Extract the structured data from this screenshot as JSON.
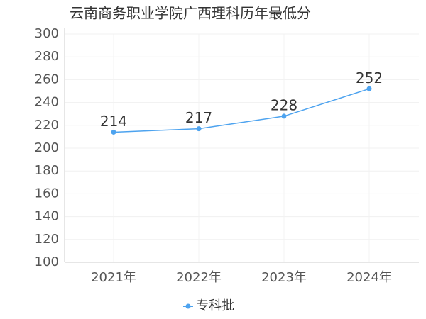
{
  "chart_data": {
    "type": "line",
    "title": "云南商务职业学院广西理科历年最低分",
    "categories": [
      "2021年",
      "2022年",
      "2023年",
      "2024年"
    ],
    "series": [
      {
        "name": "专科批",
        "color": "#4da3ef",
        "values": [
          214,
          217,
          228,
          252
        ]
      }
    ],
    "ylim": [
      100,
      300
    ],
    "yticks": [
      100,
      120,
      140,
      160,
      180,
      200,
      220,
      240,
      260,
      280,
      300
    ],
    "grid": true,
    "legend": "bottom"
  }
}
